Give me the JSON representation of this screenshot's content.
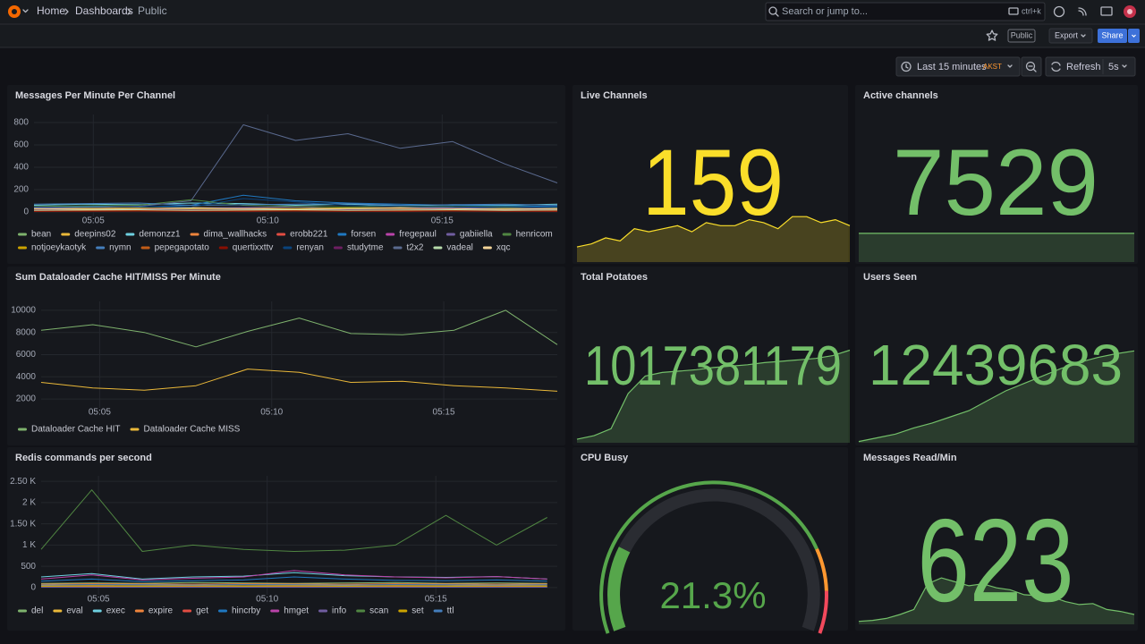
{
  "header": {
    "breadcrumb": [
      "Home",
      "Dashboards",
      "Public"
    ],
    "search": "Search or jump to...",
    "shortcut": "ctrl+k"
  },
  "toolbar": {
    "badge": "Public",
    "export": "Export",
    "share": "Share"
  },
  "time_picker": {
    "range": "Last 15 minutes",
    "timezone": "AKST",
    "refresh": "Refresh",
    "interval": "5s"
  },
  "chart_data": [
    {
      "type": "line",
      "title": "Messages Per Minute Per Channel",
      "x": [
        3.3,
        4.8,
        6.3,
        7.8,
        9.3,
        10.8,
        12.3,
        13.8,
        15.3,
        16.8,
        18.3
      ],
      "xlim": [
        3.3,
        18.3
      ],
      "xticks": [
        {
          "value": 5,
          "label": "05:05"
        },
        {
          "value": 10,
          "label": "05:10"
        },
        {
          "value": 15,
          "label": "05:15"
        }
      ],
      "ylim": [
        -40,
        872
      ],
      "yticks": [
        0,
        200,
        400,
        600,
        800
      ],
      "grid": true,
      "series": [
        {
          "name": "bean",
          "color": "#7eb26d",
          "values": [
            20,
            25,
            30,
            25,
            20,
            30,
            25,
            20,
            25,
            30,
            20
          ]
        },
        {
          "name": "deepins02",
          "color": "#eab839",
          "values": [
            30,
            35,
            30,
            40,
            35,
            30,
            35,
            40,
            30,
            35,
            30
          ]
        },
        {
          "name": "demonzz1",
          "color": "#6ed0e0",
          "values": [
            60,
            70,
            65,
            80,
            75,
            60,
            70,
            55,
            65,
            60,
            70
          ]
        },
        {
          "name": "dima_wallhacks",
          "color": "#ef843c",
          "values": [
            10,
            15,
            20,
            15,
            10,
            20,
            15,
            10,
            15,
            20,
            15
          ]
        },
        {
          "name": "erobb221",
          "color": "#e24d42",
          "values": [
            5,
            10,
            8,
            12,
            6,
            10,
            8,
            6,
            10,
            8,
            6
          ]
        },
        {
          "name": "forsen",
          "color": "#1f78c1",
          "values": [
            40,
            50,
            45,
            60,
            150,
            100,
            80,
            70,
            60,
            55,
            50
          ]
        },
        {
          "name": "fregepaul",
          "color": "#ba43a9",
          "values": [
            15,
            20,
            25,
            20,
            30,
            25,
            20,
            15,
            20,
            25,
            20
          ]
        },
        {
          "name": "gabiiella",
          "color": "#705da0",
          "values": [
            35,
            40,
            30,
            35,
            40,
            45,
            30,
            35,
            40,
            30,
            35
          ]
        },
        {
          "name": "henricom",
          "color": "#508642",
          "values": [
            50,
            55,
            60,
            110,
            60,
            50,
            45,
            55,
            50,
            45,
            40
          ]
        },
        {
          "name": "notjoeykaotyk",
          "color": "#cca300",
          "values": [
            25,
            30,
            35,
            30,
            25,
            30,
            35,
            30,
            25,
            30,
            25
          ]
        },
        {
          "name": "nymn",
          "color": "#447ebc",
          "values": [
            70,
            75,
            80,
            60,
            65,
            70,
            75,
            60,
            65,
            70,
            60
          ]
        },
        {
          "name": "pepegapotato",
          "color": "#c15c17",
          "values": [
            10,
            12,
            15,
            10,
            12,
            15,
            10,
            12,
            15,
            10,
            12
          ]
        },
        {
          "name": "quertixxttv",
          "color": "#890f02",
          "values": [
            5,
            6,
            8,
            5,
            6,
            8,
            5,
            6,
            8,
            5,
            6
          ]
        },
        {
          "name": "renyan",
          "color": "#0a437c",
          "values": [
            45,
            40,
            50,
            45,
            120,
            90,
            60,
            50,
            45,
            40,
            45
          ]
        },
        {
          "name": "studytme",
          "color": "#6d1f62",
          "values": [
            20,
            22,
            25,
            20,
            22,
            25,
            20,
            22,
            25,
            20,
            22
          ]
        },
        {
          "name": "t2x2",
          "color": "#5a6a8f",
          "values": [
            40,
            40,
            50,
            100,
            780,
            640,
            700,
            570,
            630,
            430,
            260
          ]
        },
        {
          "name": "vadeal",
          "color": "#b7dbab",
          "values": [
            15,
            18,
            20,
            15,
            18,
            20,
            15,
            18,
            20,
            15,
            18
          ]
        },
        {
          "name": "xqc",
          "color": "#f4d598",
          "values": [
            30,
            25,
            30,
            35,
            30,
            25,
            30,
            35,
            30,
            25,
            30
          ]
        }
      ]
    },
    {
      "type": "stat",
      "title": "Live Channels",
      "value": 159,
      "color": "#fade2a",
      "ylim": [
        145,
        163
      ],
      "values": [
        150,
        151,
        153,
        152,
        156,
        155,
        156,
        157,
        155,
        158,
        157,
        157,
        159,
        158,
        156,
        160,
        160,
        158,
        159,
        157
      ]
    },
    {
      "type": "stat",
      "title": "Active channels",
      "value": 7529,
      "color": "#73bf69",
      "ylim": [
        7450,
        7600
      ],
      "values": [
        7529,
        7529,
        7529,
        7529,
        7529,
        7529,
        7529,
        7529,
        7529,
        7529,
        7529,
        7529
      ]
    },
    {
      "type": "line",
      "title": "Sum Dataloader Cache HIT/MISS Per Minute",
      "x": [
        3.3,
        4.8,
        6.3,
        7.8,
        9.3,
        10.8,
        12.3,
        13.8,
        15.3,
        16.8,
        18.3
      ],
      "xlim": [
        3.3,
        18.3
      ],
      "xticks": [
        {
          "value": 5,
          "label": "05:05"
        },
        {
          "value": 10,
          "label": "05:10"
        },
        {
          "value": 15,
          "label": "05:15"
        }
      ],
      "ylim": [
        1200,
        10800
      ],
      "yticks": [
        2000,
        4000,
        6000,
        8000,
        10000
      ],
      "grid": true,
      "series": [
        {
          "name": "Dataloader Cache HIT",
          "color": "#7eb26d",
          "values": [
            8200,
            8700,
            8000,
            6700,
            8100,
            9300,
            7900,
            7800,
            8200,
            10000,
            6900
          ]
        },
        {
          "name": "Dataloader Cache MISS",
          "color": "#eab839",
          "values": [
            3500,
            3000,
            2800,
            3200,
            4700,
            4400,
            3500,
            3600,
            3200,
            3000,
            2700
          ]
        }
      ]
    },
    {
      "type": "stat",
      "title": "Total Potatoes",
      "value": 1017381179,
      "color": "#73bf69",
      "ylim": [
        1017368000,
        1017382000
      ],
      "values": [
        1017368500,
        1017369000,
        1017370000,
        1017375000,
        1017377500,
        1017378000,
        1017378200,
        1017378400,
        1017378700,
        1017378900,
        1017379100,
        1017379400,
        1017379600,
        1017379800,
        1017380000,
        1017380400,
        1017381179
      ]
    },
    {
      "type": "stat",
      "title": "Users Seen",
      "value": 12439683,
      "color": "#73bf69",
      "ylim": [
        12438940,
        12439700
      ],
      "values": [
        12438950,
        12438980,
        12439010,
        12439060,
        12439100,
        12439150,
        12439200,
        12439280,
        12439360,
        12439420,
        12439480,
        12439540,
        12439590,
        12439630,
        12439660,
        12439683
      ]
    },
    {
      "type": "line",
      "title": "Redis commands per second",
      "x": [
        3.3,
        4.8,
        6.3,
        7.8,
        9.3,
        10.8,
        12.3,
        13.8,
        15.3,
        16.8,
        18.3
      ],
      "xlim": [
        3.3,
        18.6
      ],
      "xticks": [
        {
          "value": 5,
          "label": "05:05"
        },
        {
          "value": 10,
          "label": "05:10"
        },
        {
          "value": 15,
          "label": "05:15"
        }
      ],
      "ylim": [
        -170,
        2630
      ],
      "yticks": [
        0,
        500,
        {
          "value": 1000,
          "label": "1 K"
        },
        {
          "value": 1500,
          "label": "1.50 K"
        },
        {
          "value": 2000,
          "label": "2 K"
        },
        {
          "value": 2500,
          "label": "2.50 K"
        }
      ],
      "grid": true,
      "series": [
        {
          "name": "del",
          "color": "#7eb26d",
          "values": [
            100,
            110,
            100,
            120,
            110,
            100,
            110,
            120,
            100,
            110,
            100
          ]
        },
        {
          "name": "eval",
          "color": "#eab839",
          "values": [
            50,
            60,
            55,
            50,
            60,
            55,
            50,
            60,
            55,
            50,
            55
          ]
        },
        {
          "name": "exec",
          "color": "#6ed0e0",
          "values": [
            250,
            330,
            200,
            250,
            270,
            350,
            280,
            250,
            240,
            260,
            200
          ]
        },
        {
          "name": "expire",
          "color": "#ef843c",
          "values": [
            80,
            90,
            85,
            80,
            90,
            85,
            80,
            90,
            85,
            80,
            85
          ]
        },
        {
          "name": "get",
          "color": "#e24d42",
          "values": [
            20,
            25,
            20,
            25,
            20,
            25,
            20,
            25,
            20,
            25,
            20
          ]
        },
        {
          "name": "hincrby",
          "color": "#1f78c1",
          "values": [
            150,
            200,
            140,
            160,
            180,
            250,
            200,
            170,
            160,
            180,
            150
          ]
        },
        {
          "name": "hmget",
          "color": "#ba43a9",
          "values": [
            200,
            300,
            180,
            220,
            250,
            400,
            300,
            250,
            230,
            260,
            200
          ]
        },
        {
          "name": "info",
          "color": "#705da0",
          "values": [
            10,
            10,
            10,
            10,
            10,
            10,
            10,
            10,
            10,
            10,
            10
          ]
        },
        {
          "name": "scan",
          "color": "#508642",
          "values": [
            900,
            2300,
            850,
            1000,
            900,
            850,
            880,
            1000,
            1700,
            1000,
            1650
          ]
        },
        {
          "name": "set",
          "color": "#cca300",
          "values": [
            30,
            35,
            30,
            35,
            30,
            35,
            30,
            35,
            30,
            35,
            30
          ]
        },
        {
          "name": "ttl",
          "color": "#447ebc",
          "values": [
            60,
            70,
            65,
            60,
            70,
            65,
            60,
            70,
            65,
            60,
            65
          ]
        }
      ]
    },
    {
      "type": "gauge",
      "title": "CPU Busy",
      "value": 21.3,
      "value_label": "21.3%",
      "color": "#56a64b",
      "lim": [
        0,
        100
      ],
      "thresholds": [
        {
          "value": 0,
          "color": "#56a64b"
        },
        {
          "value": 80,
          "color": "#ff9830"
        },
        {
          "value": 90,
          "color": "#f2495c"
        }
      ]
    },
    {
      "type": "stat",
      "title": "Messages Read/Min",
      "value": 623,
      "color": "#73bf69",
      "ylim": [
        150,
        1400
      ],
      "values": [
        180,
        190,
        210,
        250,
        300,
        560,
        620,
        580,
        540,
        560,
        520,
        500,
        450,
        440,
        430,
        380,
        350,
        360,
        300,
        280,
        250
      ]
    }
  ]
}
